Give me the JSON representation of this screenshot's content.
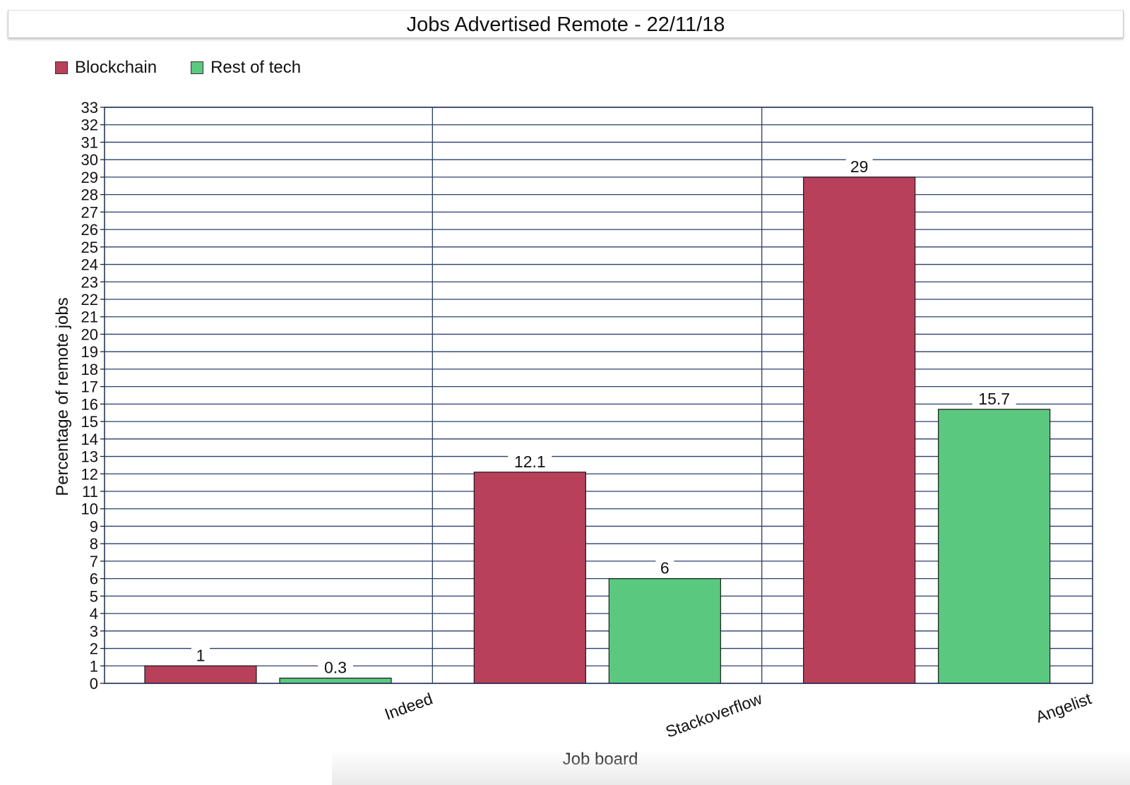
{
  "chart_data": {
    "type": "bar",
    "title": "Jobs Advertised Remote - 22/11/18",
    "xlabel": "Job board",
    "ylabel": "Percentage of remote jobs",
    "categories": [
      "Indeed",
      "Stackoverflow",
      "Angelist"
    ],
    "series": [
      {
        "name": "Blockchain",
        "values": [
          1,
          12.1,
          29
        ],
        "color": "#b8405a"
      },
      {
        "name": "Rest of tech",
        "values": [
          0.3,
          6,
          15.7
        ],
        "color": "#5bc87f"
      }
    ],
    "ylim": [
      0,
      33
    ],
    "y_tick_step": 1,
    "grid": true,
    "legend_position": "top-left",
    "data_labels": true,
    "grid_color": "#2a3f6e"
  }
}
